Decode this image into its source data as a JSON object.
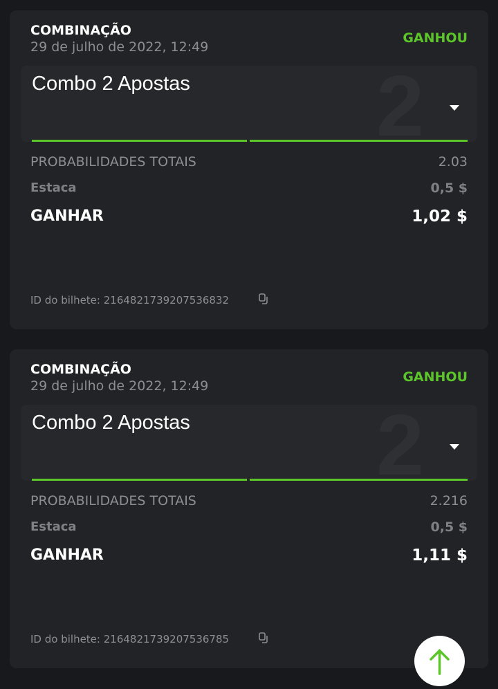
{
  "tickets": [
    {
      "type": "COMBINAÇÃO",
      "date": "29 de julho de 2022, 12:49",
      "status": "GANHOU",
      "combo_label": "Combo 2 Apostas",
      "combo_count": "2",
      "odds_label": "PROBABILIDADES TOTAIS",
      "odds_value": "2.03",
      "stake_label": "Estaca",
      "stake_value": "0,5 $",
      "win_label": "GANHAR",
      "win_value": "1,02 $",
      "ticket_id": "ID do bilhete: 2164821739207536832"
    },
    {
      "type": "COMBINAÇÃO",
      "date": "29 de julho de 2022, 12:49",
      "status": "GANHOU",
      "combo_label": "Combo 2 Apostas",
      "combo_count": "2",
      "odds_label": "PROBABILIDADES TOTAIS",
      "odds_value": "2.216",
      "stake_label": "Estaca",
      "stake_value": "0,5 $",
      "win_label": "GANHAR",
      "win_value": "1,11 $",
      "ticket_id": "ID do bilhete: 2164821739207536785"
    }
  ],
  "colors": {
    "accent": "#5cc52a",
    "card": "#222327",
    "background": "#18191c"
  },
  "icons": {
    "dropdown": "caret-down-icon",
    "copy": "copy-icon",
    "scroll_top": "arrow-up-icon"
  }
}
